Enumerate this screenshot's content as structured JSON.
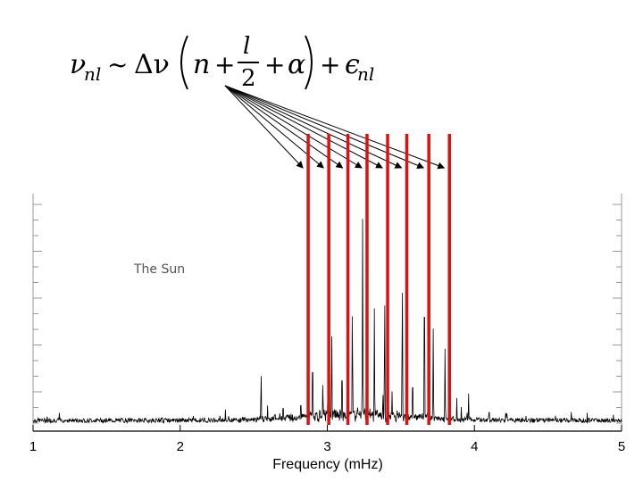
{
  "chart_data": {
    "type": "line",
    "title": "",
    "annotation": "The Sun",
    "xlabel": "Frequency (mHz)",
    "ylabel": "",
    "xlim": [
      1,
      5
    ],
    "x_ticks": [
      "1",
      "2",
      "3",
      "4",
      "5"
    ],
    "y_ticks_labeled": false,
    "grid": false,
    "series": [
      {
        "values_description_peaks": [
          {
            "x": 2.55,
            "y": 0.27
          },
          {
            "x": 2.7,
            "y": 0.12
          },
          {
            "x": 2.82,
            "y": 0.14
          },
          {
            "x": 2.9,
            "y": 0.38
          },
          {
            "x": 2.97,
            "y": 0.22
          },
          {
            "x": 3.03,
            "y": 0.49
          },
          {
            "x": 3.1,
            "y": 0.32
          },
          {
            "x": 3.17,
            "y": 0.6
          },
          {
            "x": 3.24,
            "y": 0.92
          },
          {
            "x": 3.32,
            "y": 0.52
          },
          {
            "x": 3.39,
            "y": 0.66
          },
          {
            "x": 3.44,
            "y": 0.15
          },
          {
            "x": 3.51,
            "y": 0.73
          },
          {
            "x": 3.58,
            "y": 0.27
          },
          {
            "x": 3.66,
            "y": 0.78
          },
          {
            "x": 3.72,
            "y": 0.43
          },
          {
            "x": 3.8,
            "y": 0.34
          },
          {
            "x": 3.88,
            "y": 0.12
          },
          {
            "x": 3.96,
            "y": 0.14
          },
          {
            "x": 4.1,
            "y": 0.09
          },
          {
            "x": 4.22,
            "y": 0.08
          },
          {
            "x": 4.35,
            "y": 0.05
          }
        ]
      }
    ],
    "highlight_lines": {
      "color": "#dd1111",
      "x": [
        2.87,
        3.01,
        3.14,
        3.27,
        3.41,
        3.54,
        3.69,
        3.83
      ]
    },
    "formula": {
      "lhs": "ν",
      "lhs_sub": "nl",
      "sim": "~",
      "delta": "Δν",
      "n": "n",
      "plus1": "+",
      "frac_num": "l",
      "frac_den": "2",
      "plus2": "+",
      "alpha": "α",
      "plus3": "+",
      "eps": "ϵ",
      "eps_sub": "nl"
    }
  }
}
